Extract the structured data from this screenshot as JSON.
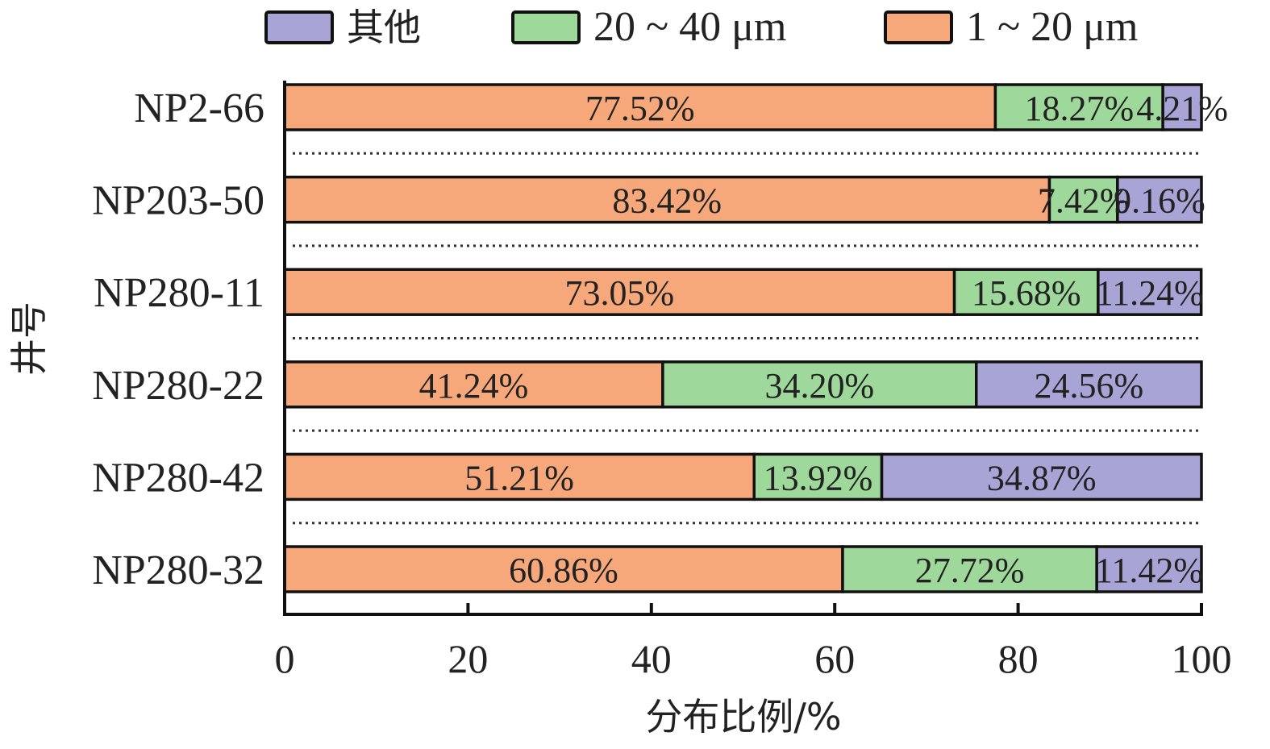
{
  "chart_data": {
    "type": "bar",
    "orientation": "horizontal",
    "stacked": true,
    "categories": [
      "NP2-66",
      "NP203-50",
      "NP280-11",
      "NP280-22",
      "NP280-42",
      "NP280-32"
    ],
    "series": [
      {
        "name": "1 ~ 20 μm",
        "color": "#F6A87A",
        "values": [
          77.52,
          83.42,
          73.05,
          41.24,
          51.21,
          60.86
        ],
        "labels": [
          "77.52%",
          "83.42%",
          "73.05%",
          "41.24%",
          "51.21%",
          "60.86%"
        ]
      },
      {
        "name": "20 ~ 40 μm",
        "color": "#9ED99B",
        "values": [
          18.27,
          7.42,
          15.68,
          34.2,
          13.92,
          27.72
        ],
        "labels": [
          "18.27%",
          "7.42%",
          "15.68%",
          "34.20%",
          "13.92%",
          "27.72%"
        ]
      },
      {
        "name": "其他",
        "color": "#A9A4D6",
        "values": [
          4.21,
          9.16,
          11.24,
          24.56,
          34.87,
          11.42
        ],
        "labels": [
          "4.21%",
          "9.16%",
          "11.24%",
          "24.56%",
          "34.87%",
          "11.42%"
        ]
      }
    ],
    "legend_order": [
      "其他",
      "20 ~ 40 μm",
      "1 ~ 20 μm"
    ],
    "legend_position": "top",
    "xlabel": "分布比例/%",
    "ylabel": "井号",
    "xlim": [
      0,
      100
    ],
    "xticks": [
      0,
      20,
      40,
      60,
      80,
      100
    ],
    "xtick_labels": [
      "0",
      "20",
      "40",
      "60",
      "80",
      "100"
    ],
    "separators": "dotted",
    "grid": false
  }
}
